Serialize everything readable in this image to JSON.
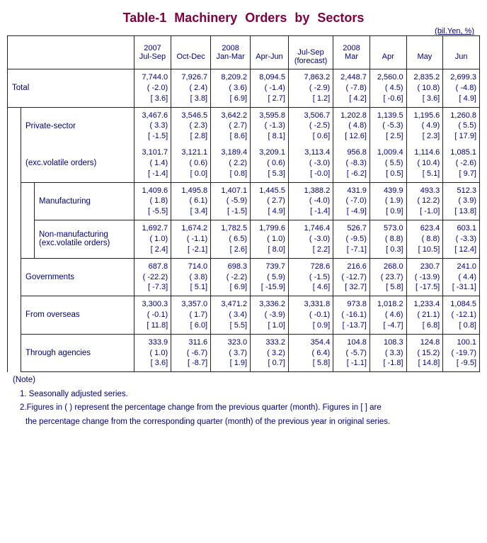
{
  "title": "Table-1  Machinery  Orders  by  Sectors",
  "unit_label": "(bil.Yen, %)",
  "columns": [
    {
      "line1": "2007",
      "line2": "Jul-Sep",
      "line3": ""
    },
    {
      "line1": "",
      "line2": "Oct-Dec",
      "line3": ""
    },
    {
      "line1": "2008",
      "line2": "Jan-Mar",
      "line3": ""
    },
    {
      "line1": "",
      "line2": "Apr-Jun",
      "line3": ""
    },
    {
      "line1": "",
      "line2": "Jul-Sep",
      "line3": "(forecast)"
    },
    {
      "line1": "2008",
      "line2": "Mar",
      "line3": ""
    },
    {
      "line1": "",
      "line2": "Apr",
      "line3": ""
    },
    {
      "line1": "",
      "line2": "May",
      "line3": ""
    },
    {
      "line1": "",
      "line2": "Jun",
      "line3": ""
    }
  ],
  "rows": [
    {
      "label": "Total",
      "indent": 0,
      "cells": [
        {
          "v": "7,744.0",
          "p": "( -2.0)",
          "b": "[ 3.6]"
        },
        {
          "v": "7,926.7",
          "p": "( 2.4)",
          "b": "[ 3.8]"
        },
        {
          "v": "8,209.2",
          "p": "( 3.6)",
          "b": "[ 6.9]"
        },
        {
          "v": "8,094.5",
          "p": "( -1.4)",
          "b": "[ 2.7]"
        },
        {
          "v": "7,863.2",
          "p": "( -2.9)",
          "b": "[ 1.2]"
        },
        {
          "v": "2,448.7",
          "p": "( -7.8)",
          "b": "[ 4.2]"
        },
        {
          "v": "2,560.0",
          "p": "( 4.5)",
          "b": "[ -0.6]"
        },
        {
          "v": "2,835.2",
          "p": "( 10.8)",
          "b": "[ 3.6]"
        },
        {
          "v": "2,699.3",
          "p": "( -4.8)",
          "b": "[ 4.9]"
        }
      ]
    },
    {
      "label": "Private-sector",
      "indent": 1,
      "cells": [
        {
          "v": "3,467.6",
          "p": "( 3.3)",
          "b": "[ -1.5]"
        },
        {
          "v": "3,546.5",
          "p": "( 2.3)",
          "b": "[ 2.8]"
        },
        {
          "v": "3,642.2",
          "p": "( 2.7)",
          "b": "[ 8.6]"
        },
        {
          "v": "3,595.8",
          "p": "( -1.3)",
          "b": "[ 8.1]"
        },
        {
          "v": "3,506.7",
          "p": "( -2.5)",
          "b": "[ 0.6]"
        },
        {
          "v": "1,202.8",
          "p": "( 4.8)",
          "b": "[ 12.6]"
        },
        {
          "v": "1,139.5",
          "p": "( -5.3)",
          "b": "[ 2.5]"
        },
        {
          "v": "1,195.6",
          "p": "( 4.9)",
          "b": "[ 2.3]"
        },
        {
          "v": "1,260.8",
          "p": "( 5.5)",
          "b": "[ 17.9]"
        }
      ]
    },
    {
      "label": "(exc.volatile orders)",
      "indent": 1,
      "cells": [
        {
          "v": "3,101.7",
          "p": "( 1.4)",
          "b": "[ -1.4]"
        },
        {
          "v": "3,121.1",
          "p": "( 0.6)",
          "b": "[ 0.0]"
        },
        {
          "v": "3,189.4",
          "p": "( 2.2)",
          "b": "[ 0.8]"
        },
        {
          "v": "3,209.1",
          "p": "( 0.6)",
          "b": "[ 5.3]"
        },
        {
          "v": "3,113.4",
          "p": "( -3.0)",
          "b": "[ -0.0]"
        },
        {
          "v": "956.8",
          "p": "( -8.3)",
          "b": "[ -6.2]"
        },
        {
          "v": "1,009.4",
          "p": "( 5.5)",
          "b": "[ 0.5]"
        },
        {
          "v": "1,114.6",
          "p": "( 10.4)",
          "b": "[ 5.1]"
        },
        {
          "v": "1,085.1",
          "p": "( -2.6)",
          "b": "[ 9.7]"
        }
      ]
    },
    {
      "label": "Manufacturing",
      "indent": 2,
      "cells": [
        {
          "v": "1,409.6",
          "p": "( 1.8)",
          "b": "[ -5.5]"
        },
        {
          "v": "1,495.8",
          "p": "( 6.1)",
          "b": "[ 3.4]"
        },
        {
          "v": "1,407.1",
          "p": "( -5.9)",
          "b": "[ -1.5]"
        },
        {
          "v": "1,445.5",
          "p": "( 2.7)",
          "b": "[ 4.9]"
        },
        {
          "v": "1,388.2",
          "p": "( -4.0)",
          "b": "[ -1.4]"
        },
        {
          "v": "431.9",
          "p": "( -7.0)",
          "b": "[ -4.9]"
        },
        {
          "v": "439.9",
          "p": "( 1.9)",
          "b": "[ 0.9]"
        },
        {
          "v": "493.3",
          "p": "( 12.2)",
          "b": "[ -1.0]"
        },
        {
          "v": "512.3",
          "p": "( 3.9)",
          "b": "[ 13.8]"
        }
      ]
    },
    {
      "label": "Non-manufacturing\n(exc.volatile orders)",
      "indent": 2,
      "cells": [
        {
          "v": "1,692.7",
          "p": "( 1.0)",
          "b": "[ 2.4]"
        },
        {
          "v": "1,674.2",
          "p": "( -1.1)",
          "b": "[ -2.1]"
        },
        {
          "v": "1,782.5",
          "p": "( 6.5)",
          "b": "[ 2.6]"
        },
        {
          "v": "1,799.6",
          "p": "( 1.0)",
          "b": "[ 8.0]"
        },
        {
          "v": "1,746.4",
          "p": "( -3.0)",
          "b": "[ 2.2]"
        },
        {
          "v": "526.7",
          "p": "( -9.5)",
          "b": "[ -7.1]"
        },
        {
          "v": "573.0",
          "p": "( 8.8)",
          "b": "[ 0.3]"
        },
        {
          "v": "623.4",
          "p": "( 8.8)",
          "b": "[ 10.5]"
        },
        {
          "v": "603.1",
          "p": "( -3.3)",
          "b": "[ 12.4]"
        }
      ]
    },
    {
      "label": "Governments",
      "indent": 1,
      "cells": [
        {
          "v": "687.8",
          "p": "( -22.2)",
          "b": "[ -7.3]"
        },
        {
          "v": "714.0",
          "p": "( 3.8)",
          "b": "[ 5.1]"
        },
        {
          "v": "698.3",
          "p": "( -2.2)",
          "b": "[ 6.9]"
        },
        {
          "v": "739.7",
          "p": "( 5.9)",
          "b": "[ -15.9]"
        },
        {
          "v": "728.6",
          "p": "( -1.5)",
          "b": "[ 4.6]"
        },
        {
          "v": "216.6",
          "p": "( -12.7)",
          "b": "[ 32.7]"
        },
        {
          "v": "268.0",
          "p": "( 23.7)",
          "b": "[ 5.8]"
        },
        {
          "v": "230.7",
          "p": "( -13.9)",
          "b": "[ -17.5]"
        },
        {
          "v": "241.0",
          "p": "( 4.4)",
          "b": "[ -31.1]"
        }
      ]
    },
    {
      "label": "From overseas",
      "indent": 1,
      "cells": [
        {
          "v": "3,300.3",
          "p": "( -0.1)",
          "b": "[ 11.8]"
        },
        {
          "v": "3,357.0",
          "p": "( 1.7)",
          "b": "[ 6.0]"
        },
        {
          "v": "3,471.2",
          "p": "( 3.4)",
          "b": "[ 5.5]"
        },
        {
          "v": "3,336.2",
          "p": "( -3.9)",
          "b": "[ 1.0]"
        },
        {
          "v": "3,331.8",
          "p": "( -0.1)",
          "b": "[ 0.9]"
        },
        {
          "v": "973.8",
          "p": "( -16.1)",
          "b": "[ -13.7]"
        },
        {
          "v": "1,018.2",
          "p": "( 4.6)",
          "b": "[ -4.7]"
        },
        {
          "v": "1,233.4",
          "p": "( 21.1)",
          "b": "[ 6.8]"
        },
        {
          "v": "1,084.5",
          "p": "( -12.1)",
          "b": "[ 0.8]"
        }
      ]
    },
    {
      "label": "Through agencies",
      "indent": 1,
      "cells": [
        {
          "v": "333.9",
          "p": "( 1.0)",
          "b": "[ 3.6]"
        },
        {
          "v": "311.6",
          "p": "( -6.7)",
          "b": "[ -8.7]"
        },
        {
          "v": "323.0",
          "p": "( 3.7)",
          "b": "[ 1.9]"
        },
        {
          "v": "333.2",
          "p": "( 3.2)",
          "b": "[ 0.7]"
        },
        {
          "v": "354.4",
          "p": "( 6.4)",
          "b": "[ 5.8]"
        },
        {
          "v": "104.8",
          "p": "( -5.7)",
          "b": "[ -1.1]"
        },
        {
          "v": "108.3",
          "p": "( 3.3)",
          "b": "[ -1.8]"
        },
        {
          "v": "124.8",
          "p": "( 15.2)",
          "b": "[ 14.8]"
        },
        {
          "v": "100.1",
          "p": "( -19.7)",
          "b": "[ -9.5]"
        }
      ]
    }
  ],
  "notes": {
    "heading": "(Note)",
    "line1": "1. Seasonally adjusted series.",
    "line2": "2.Figures in ( ) represent the percentage change from the previous quarter (month). Figures in [ ] are",
    "line3": "the percentage change from the corresponding quarter (month) of the previous year in original series."
  }
}
